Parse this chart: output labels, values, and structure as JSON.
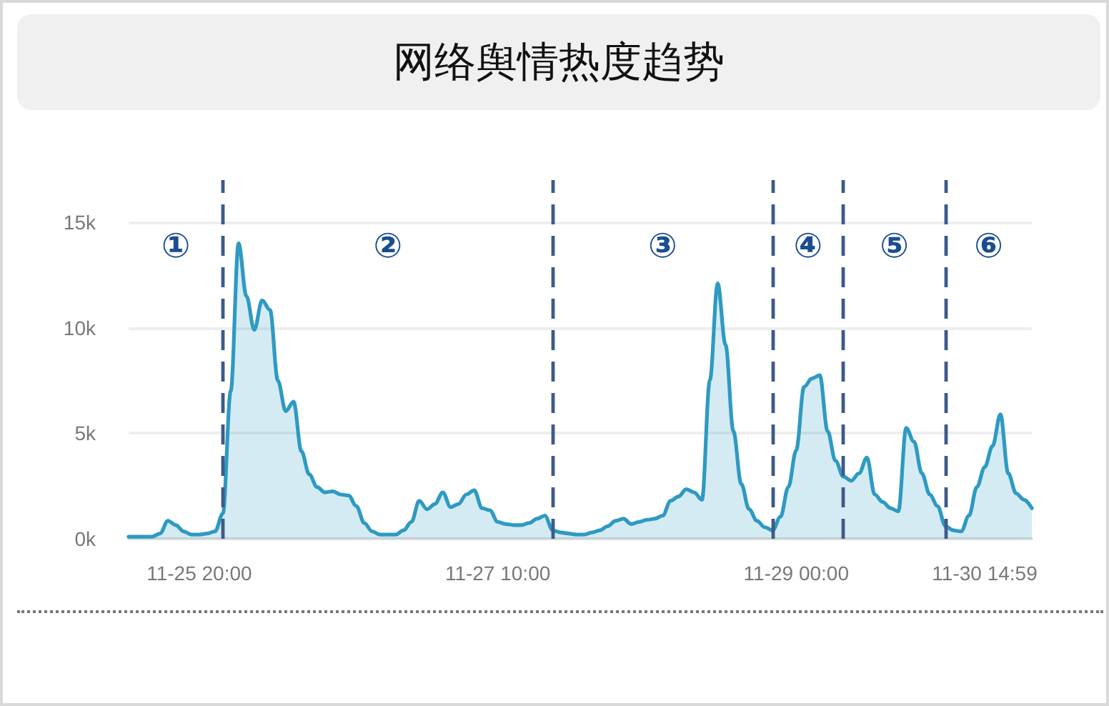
{
  "chart_data": {
    "type": "area",
    "title": "网络舆情热度趋势",
    "categories": [
      null,
      null,
      null,
      null,
      null,
      null,
      null,
      null,
      null,
      "11-25 20:00",
      null,
      null,
      null,
      null,
      null,
      null,
      null,
      null,
      null,
      null,
      null,
      null,
      null,
      null,
      null,
      null,
      null,
      null,
      null,
      null,
      null,
      null,
      null,
      null,
      null,
      null,
      null,
      null,
      null,
      null,
      null,
      null,
      null,
      null,
      null,
      null,
      null,
      "11-27 10:00",
      null,
      null,
      null,
      null,
      null,
      null,
      null,
      null,
      null,
      null,
      null,
      null,
      null,
      null,
      null,
      null,
      null,
      null,
      null,
      null,
      null,
      null,
      null,
      null,
      null,
      null,
      null,
      null,
      null,
      null,
      null,
      null,
      null,
      null,
      null,
      null,
      null,
      "11-29 00:00",
      null,
      null,
      null,
      null,
      null,
      null,
      null,
      null,
      null,
      null,
      null,
      null,
      null,
      null,
      null,
      null,
      null,
      null,
      null,
      null,
      null,
      null,
      null,
      "11-30 14:59",
      null,
      null,
      null,
      null,
      null,
      null
    ],
    "values": [
      100,
      100,
      100,
      100,
      250,
      850,
      650,
      350,
      200,
      200,
      250,
      350,
      1200,
      7000,
      14000,
      11500,
      9900,
      11300,
      10850,
      7500,
      6050,
      6500,
      4150,
      3050,
      2450,
      2200,
      2250,
      2100,
      2050,
      1550,
      750,
      350,
      200,
      200,
      200,
      400,
      800,
      1800,
      1400,
      1650,
      2200,
      1500,
      1650,
      2100,
      2300,
      1450,
      1350,
      800,
      700,
      650,
      650,
      750,
      950,
      1100,
      400,
      300,
      250,
      200,
      200,
      300,
      400,
      600,
      850,
      950,
      700,
      800,
      900,
      950,
      1100,
      1800,
      2000,
      2350,
      2200,
      1850,
      7500,
      12100,
      9200,
      5100,
      2600,
      1400,
      850,
      550,
      400,
      1050,
      2450,
      4200,
      7200,
      7600,
      7750,
      5100,
      3700,
      2950,
      2750,
      3100,
      3850,
      2100,
      1750,
      1450,
      1300,
      5250,
      4600,
      3100,
      2100,
      1550,
      600,
      400,
      350,
      1100,
      2450,
      3400,
      4400,
      5900,
      3100,
      2150,
      1850,
      1450
    ],
    "color": "#2e9ac2",
    "ylim": [
      0,
      17000
    ],
    "yticks": [
      {
        "value": 0,
        "label": "0k"
      },
      {
        "value": 5000,
        "label": "5k"
      },
      {
        "value": 10000,
        "label": "10k"
      },
      {
        "value": 15000,
        "label": "15k"
      }
    ],
    "grid": "y",
    "marker": "none",
    "line_style": "solid",
    "annotations": [
      "①",
      "②",
      "③",
      "④",
      "⑤",
      "⑥"
    ]
  }
}
